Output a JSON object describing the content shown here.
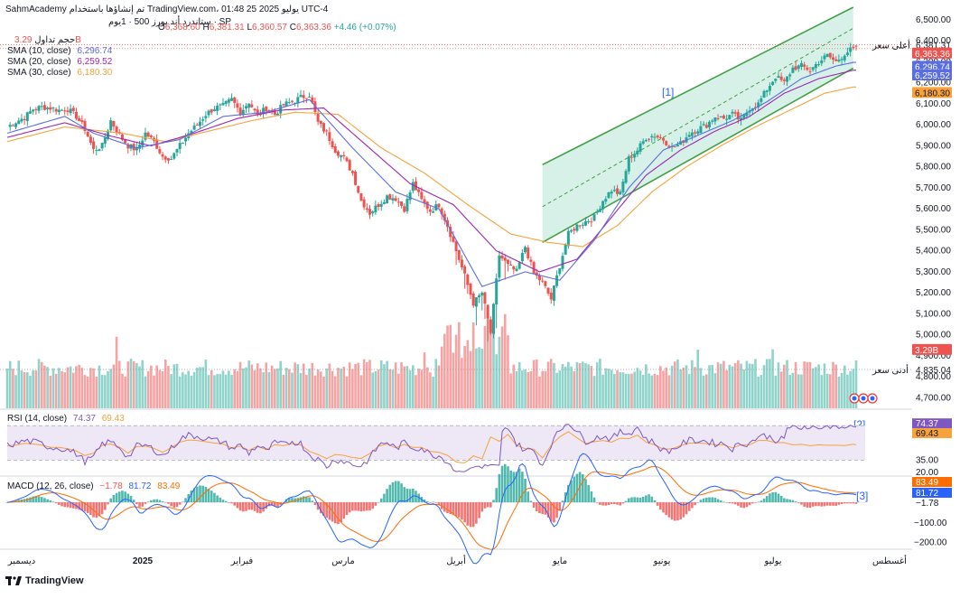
{
  "header": {
    "top_line": "SahmAcademy تم إنشاؤها باستخدام TradingView.com، 01:48 25 يوليو 2025 UTC-4",
    "symbol_line": "ستاندرد أند بورز 500 · 1يوم · SP",
    "ohlc": {
      "o_label": "O",
      "o": "6,368.60",
      "h_label": "H",
      "h": "6,381.31",
      "l_label": "L",
      "l": "6,360.57",
      "c_label": "C",
      "c": "6,363.36",
      "chg": "+4.46 (+0.07%)"
    },
    "volume_label": "حجم تداول",
    "volume_value": "3.29B",
    "sma10_label": "SMA (10, close)",
    "sma10_value": "6,296.74",
    "sma20_label": "SMA (20, close)",
    "sma20_value": "6,259.52",
    "sma30_label": "SMA (30, close)",
    "sma30_value": "6,180.30",
    "rsi_label": "RSI (14, close)",
    "rsi_value": "74.37",
    "rsi_ma_value": "69.43",
    "macd_label": "MACD (12, 26, close)",
    "macd_hist_value": "−1.78",
    "macd_value": "81.72",
    "signal_value": "83.49"
  },
  "colors": {
    "up": "#26a69a",
    "down": "#ef5350",
    "up_vol": "#8fd3cb",
    "down_vol": "#f5a3a3",
    "sma10": "#5b6ee1",
    "sma20": "#9c27b0",
    "sma30": "#f7a23b",
    "channel_fill": "#c9ece0",
    "channel_line": "#43a047",
    "rsi_line": "#7e57c2",
    "rsi_ma": "#f7a23b",
    "rsi_band": "#ede7f6",
    "macd_line": "#2962ff",
    "signal_line": "#ff6d00",
    "hist_up": "#26a69a",
    "hist_down": "#ef5350",
    "axis_text": "#131722",
    "grid": "#f0f3fa"
  },
  "annotations": {
    "a1": "[1]",
    "a2": "[2]",
    "a3": "[3]"
  },
  "price_labels": {
    "high_label": "أعلى سعر",
    "high_value": "6,381.31",
    "close_value": "6,363.36",
    "low_label": "أدنى سعر",
    "low_value": "4,835.04",
    "volume_badge": "3.29B"
  },
  "rsi_labels": {
    "upper": "74.37",
    "ma": "69.43",
    "level": "35.00",
    "bottom": "20.00"
  },
  "macd_labels": {
    "signal": "83.49",
    "macd": "81.72",
    "hist": "−1.78",
    "neg100": "−100.00",
    "neg200": "−200.00"
  },
  "x_labels": [
    "ديسمبر",
    "2025",
    "فبراير",
    "مارس",
    "أبريل",
    "مايو",
    "يونيو",
    "يوليو",
    "أغسطس"
  ],
  "branding": "TradingView",
  "chart_data": {
    "type": "candlestick",
    "price_ticks": [
      4700,
      4800,
      4900,
      5000,
      5100,
      5200,
      5300,
      5400,
      5500,
      5600,
      5700,
      5800,
      5900,
      6000,
      6100,
      6200,
      6300,
      6400,
      6500
    ],
    "price_tick_labels": [
      "4,700.00",
      "4,800.00",
      "4,900.00",
      "5,000.00",
      "5,100.00",
      "5,200.00",
      "5,300.00",
      "5,400.00",
      "5,500.00",
      "5,600.00",
      "5,700.00",
      "5,800.00",
      "5,900.00",
      "6,000.00",
      "6,100.00",
      "6,200.00",
      "6,300.00",
      "6,400.00",
      "6,500.00"
    ],
    "ylim": [
      4650,
      6560
    ],
    "close_path": [
      [
        0,
        5990
      ],
      [
        3,
        6015
      ],
      [
        6,
        6035
      ],
      [
        9,
        6075
      ],
      [
        12,
        6085
      ],
      [
        15,
        6080
      ],
      [
        18,
        6070
      ],
      [
        21,
        6075
      ],
      [
        24,
        6040
      ],
      [
        27,
        5980
      ],
      [
        30,
        5880
      ],
      [
        33,
        5900
      ],
      [
        36,
        6020
      ],
      [
        39,
        5950
      ],
      [
        42,
        5900
      ],
      [
        45,
        5880
      ],
      [
        48,
        5960
      ],
      [
        51,
        5920
      ],
      [
        54,
        5850
      ],
      [
        57,
        5840
      ],
      [
        60,
        5900
      ],
      [
        63,
        5960
      ],
      [
        66,
        6000
      ],
      [
        69,
        6050
      ],
      [
        72,
        6080
      ],
      [
        75,
        6090
      ],
      [
        78,
        6120
      ],
      [
        81,
        6060
      ],
      [
        84,
        6110
      ],
      [
        87,
        6040
      ],
      [
        90,
        6080
      ],
      [
        93,
        6050
      ],
      [
        96,
        6095
      ],
      [
        99,
        6110
      ],
      [
        102,
        6130
      ],
      [
        105,
        6145
      ],
      [
        108,
        6010
      ],
      [
        111,
        5960
      ],
      [
        114,
        5880
      ],
      [
        117,
        5840
      ],
      [
        120,
        5770
      ],
      [
        123,
        5640
      ],
      [
        126,
        5580
      ],
      [
        129,
        5620
      ],
      [
        132,
        5660
      ],
      [
        135,
        5650
      ],
      [
        138,
        5600
      ],
      [
        141,
        5720
      ],
      [
        144,
        5640
      ],
      [
        147,
        5590
      ],
      [
        150,
        5620
      ],
      [
        153,
        5520
      ],
      [
        156,
        5400
      ],
      [
        159,
        5280
      ],
      [
        162,
        5150
      ],
      [
        165,
        5200
      ],
      [
        168,
        5010
      ],
      [
        171,
        5380
      ],
      [
        174,
        5330
      ],
      [
        177,
        5300
      ],
      [
        180,
        5420
      ],
      [
        183,
        5290
      ],
      [
        186,
        5250
      ],
      [
        189,
        5170
      ],
      [
        192,
        5330
      ],
      [
        195,
        5480
      ],
      [
        198,
        5520
      ],
      [
        201,
        5540
      ],
      [
        204,
        5560
      ],
      [
        207,
        5640
      ],
      [
        210,
        5690
      ],
      [
        213,
        5670
      ],
      [
        216,
        5840
      ],
      [
        219,
        5880
      ],
      [
        222,
        5940
      ],
      [
        225,
        5950
      ],
      [
        228,
        5930
      ],
      [
        231,
        5890
      ],
      [
        234,
        5910
      ],
      [
        237,
        5960
      ],
      [
        240,
        5980
      ],
      [
        243,
        6000
      ],
      [
        246,
        6040
      ],
      [
        249,
        6030
      ],
      [
        252,
        6050
      ],
      [
        255,
        6020
      ],
      [
        258,
        6080
      ],
      [
        261,
        6100
      ],
      [
        264,
        6170
      ],
      [
        267,
        6230
      ],
      [
        270,
        6200
      ],
      [
        273,
        6270
      ],
      [
        276,
        6280
      ],
      [
        279,
        6260
      ],
      [
        282,
        6300
      ],
      [
        285,
        6330
      ],
      [
        288,
        6300
      ],
      [
        291,
        6340
      ],
      [
        294,
        6363
      ]
    ],
    "sma10_path": [
      [
        0,
        5960
      ],
      [
        20,
        6040
      ],
      [
        30,
        5960
      ],
      [
        45,
        5890
      ],
      [
        60,
        5930
      ],
      [
        75,
        6040
      ],
      [
        90,
        6060
      ],
      [
        105,
        6120
      ],
      [
        120,
        5890
      ],
      [
        135,
        5680
      ],
      [
        150,
        5600
      ],
      [
        165,
        5230
      ],
      [
        180,
        5300
      ],
      [
        192,
        5260
      ],
      [
        204,
        5450
      ],
      [
        216,
        5700
      ],
      [
        228,
        5880
      ],
      [
        240,
        5950
      ],
      [
        252,
        6020
      ],
      [
        264,
        6110
      ],
      [
        276,
        6220
      ],
      [
        288,
        6280
      ],
      [
        294,
        6297
      ]
    ],
    "sma20_path": [
      [
        0,
        5940
      ],
      [
        20,
        6010
      ],
      [
        35,
        5950
      ],
      [
        50,
        5900
      ],
      [
        65,
        5960
      ],
      [
        80,
        6030
      ],
      [
        95,
        6070
      ],
      [
        110,
        6080
      ],
      [
        125,
        5900
      ],
      [
        140,
        5720
      ],
      [
        155,
        5620
      ],
      [
        170,
        5400
      ],
      [
        185,
        5300
      ],
      [
        198,
        5360
      ],
      [
        210,
        5560
      ],
      [
        222,
        5760
      ],
      [
        234,
        5880
      ],
      [
        246,
        5970
      ],
      [
        258,
        6040
      ],
      [
        270,
        6150
      ],
      [
        282,
        6220
      ],
      [
        294,
        6260
      ]
    ],
    "sma30_path": [
      [
        0,
        5920
      ],
      [
        20,
        5990
      ],
      [
        40,
        5960
      ],
      [
        55,
        5920
      ],
      [
        70,
        5970
      ],
      [
        85,
        6020
      ],
      [
        100,
        6060
      ],
      [
        115,
        6050
      ],
      [
        130,
        5890
      ],
      [
        145,
        5770
      ],
      [
        160,
        5620
      ],
      [
        175,
        5480
      ],
      [
        188,
        5440
      ],
      [
        200,
        5420
      ],
      [
        212,
        5520
      ],
      [
        224,
        5680
      ],
      [
        236,
        5800
      ],
      [
        248,
        5900
      ],
      [
        260,
        5990
      ],
      [
        272,
        6070
      ],
      [
        284,
        6150
      ],
      [
        294,
        6180
      ]
    ],
    "channel": {
      "upper": [
        [
          186,
          5810
        ],
        [
          294,
          6560
        ]
      ],
      "lower": [
        [
          186,
          5440
        ],
        [
          294,
          6270
        ]
      ],
      "mid": [
        [
          186,
          5610
        ],
        [
          294,
          6460
        ]
      ]
    },
    "rsi": {
      "ylim": [
        20,
        90
      ],
      "band": [
        35,
        74.37
      ],
      "levels": [
        35,
        74.37
      ]
    },
    "macd": {
      "ylim": [
        -230,
        120
      ],
      "zero": 0
    }
  }
}
